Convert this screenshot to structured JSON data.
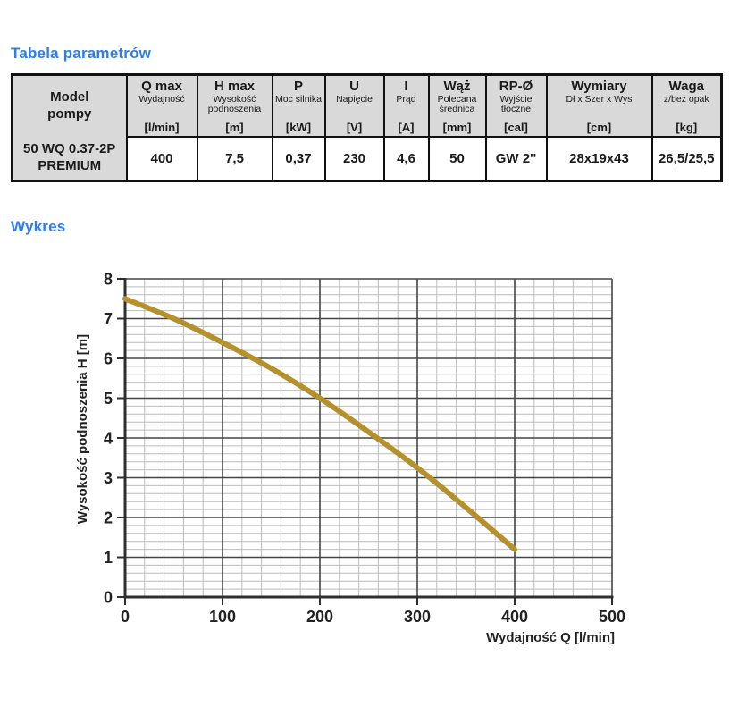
{
  "headings": {
    "table_section": "Tabela parametrów",
    "chart_section": "Wykres"
  },
  "accent_color": "#2f7be8",
  "table": {
    "model_header": "Model\npompy",
    "model_value": "50 WQ 0.37-2P\nPREMIUM",
    "columns": [
      {
        "name": "Q max",
        "desc": "Wydajność",
        "unit": "[l/min]",
        "value": "400"
      },
      {
        "name": "H max",
        "desc": "Wysokość podnoszenia",
        "unit": "[m]",
        "value": "7,5"
      },
      {
        "name": "P",
        "desc": "Moc silnika",
        "unit": "[kW]",
        "value": "0,37"
      },
      {
        "name": "U",
        "desc": "Napięcie",
        "unit": "[V]",
        "value": "230"
      },
      {
        "name": "I",
        "desc": "Prąd",
        "unit": "[A]",
        "value": "4,6"
      },
      {
        "name": "Wąż",
        "desc": "Polecana średnica",
        "unit": "[mm]",
        "value": "50"
      },
      {
        "name": "RP-Ø",
        "desc": "Wyjście tłoczne",
        "unit": "[cal]",
        "value": "GW 2''"
      },
      {
        "name": "Wymiary",
        "desc": "Dł x Szer x Wys",
        "unit": "[cm]",
        "value": "28x19x43"
      },
      {
        "name": "Waga",
        "desc": "z/bez opak",
        "unit": "[kg]",
        "value": "26,5/25,5"
      }
    ]
  },
  "chart_data": {
    "type": "line",
    "x": [
      0,
      50,
      100,
      150,
      200,
      250,
      300,
      350,
      400
    ],
    "y": [
      7.5,
      7.0,
      6.4,
      5.75,
      5.0,
      4.15,
      3.25,
      2.25,
      1.2
    ],
    "xlabel": "Wydajność Q [l/min]",
    "ylabel": "Wysokość podnoszenia H [m]",
    "xlim": [
      0,
      500
    ],
    "ylim": [
      0,
      8
    ],
    "x_ticks": [
      0,
      100,
      200,
      300,
      400,
      500
    ],
    "y_ticks": [
      0,
      1,
      2,
      3,
      4,
      5,
      6,
      7,
      8
    ],
    "x_minor_step": 20,
    "y_minor_step": 0.2,
    "grid": true,
    "legend": "none",
    "line_color": "#b5912d",
    "major_grid_color": "#454545",
    "minor_grid_color": "#bcbcbc",
    "axis_color": "#2f2f2f",
    "tick_label_color": "#222222"
  }
}
